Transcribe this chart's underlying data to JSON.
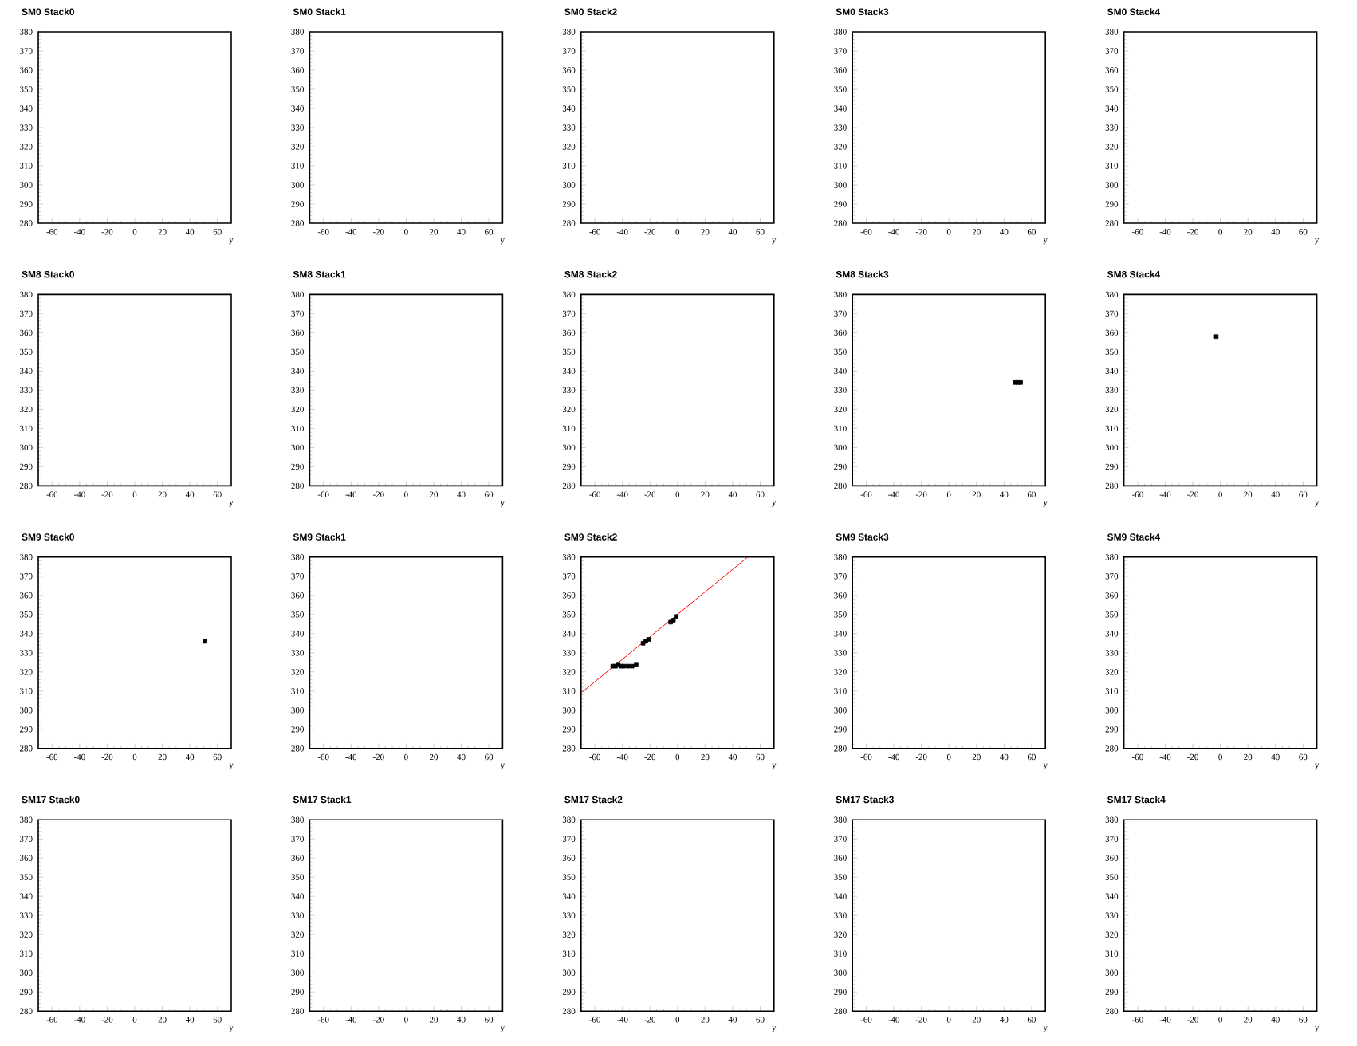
{
  "chart_data": [
    {
      "type": "scatter",
      "title": "SM0 Stack0",
      "xlabel": "y",
      "xlim": [
        -70,
        70
      ],
      "ylim": [
        280,
        380
      ],
      "xticks": [
        -60,
        -40,
        -20,
        0,
        20,
        40,
        60
      ],
      "yticks": [
        280,
        290,
        300,
        310,
        320,
        330,
        340,
        350,
        360,
        370,
        380
      ]
    },
    {
      "type": "scatter",
      "title": "SM0 Stack1",
      "xlabel": "y",
      "xlim": [
        -70,
        70
      ],
      "ylim": [
        280,
        380
      ],
      "xticks": [
        -60,
        -40,
        -20,
        0,
        20,
        40,
        60
      ],
      "yticks": [
        280,
        290,
        300,
        310,
        320,
        330,
        340,
        350,
        360,
        370,
        380
      ]
    },
    {
      "type": "scatter",
      "title": "SM0 Stack2",
      "xlabel": "y",
      "xlim": [
        -70,
        70
      ],
      "ylim": [
        280,
        380
      ],
      "xticks": [
        -60,
        -40,
        -20,
        0,
        20,
        40,
        60
      ],
      "yticks": [
        280,
        290,
        300,
        310,
        320,
        330,
        340,
        350,
        360,
        370,
        380
      ]
    },
    {
      "type": "scatter",
      "title": "SM0 Stack3",
      "xlabel": "y",
      "xlim": [
        -70,
        70
      ],
      "ylim": [
        280,
        380
      ],
      "xticks": [
        -60,
        -40,
        -20,
        0,
        20,
        40,
        60
      ],
      "yticks": [
        280,
        290,
        300,
        310,
        320,
        330,
        340,
        350,
        360,
        370,
        380
      ]
    },
    {
      "type": "scatter",
      "title": "SM0 Stack4",
      "xlabel": "y",
      "xlim": [
        -70,
        70
      ],
      "ylim": [
        280,
        380
      ],
      "xticks": [
        -60,
        -40,
        -20,
        0,
        20,
        40,
        60
      ],
      "yticks": [
        280,
        290,
        300,
        310,
        320,
        330,
        340,
        350,
        360,
        370,
        380
      ]
    },
    {
      "type": "scatter",
      "title": "SM8 Stack0",
      "xlabel": "y",
      "xlim": [
        -70,
        70
      ],
      "ylim": [
        280,
        380
      ],
      "xticks": [
        -60,
        -40,
        -20,
        0,
        20,
        40,
        60
      ],
      "yticks": [
        280,
        290,
        300,
        310,
        320,
        330,
        340,
        350,
        360,
        370,
        380
      ]
    },
    {
      "type": "scatter",
      "title": "SM8 Stack1",
      "xlabel": "y",
      "xlim": [
        -70,
        70
      ],
      "ylim": [
        280,
        380
      ],
      "xticks": [
        -60,
        -40,
        -20,
        0,
        20,
        40,
        60
      ],
      "yticks": [
        280,
        290,
        300,
        310,
        320,
        330,
        340,
        350,
        360,
        370,
        380
      ]
    },
    {
      "type": "scatter",
      "title": "SM8 Stack2",
      "xlabel": "y",
      "xlim": [
        -70,
        70
      ],
      "ylim": [
        280,
        380
      ],
      "xticks": [
        -60,
        -40,
        -20,
        0,
        20,
        40,
        60
      ],
      "yticks": [
        280,
        290,
        300,
        310,
        320,
        330,
        340,
        350,
        360,
        370,
        380
      ]
    },
    {
      "type": "scatter",
      "title": "SM8 Stack3",
      "xlabel": "y",
      "xlim": [
        -70,
        70
      ],
      "ylim": [
        280,
        380
      ],
      "xticks": [
        -60,
        -40,
        -20,
        0,
        20,
        40,
        60
      ],
      "yticks": [
        280,
        290,
        300,
        310,
        320,
        330,
        340,
        350,
        360,
        370,
        380
      ],
      "series": [
        {
          "color": "#000000",
          "marker": "square",
          "x": [
            48,
            50,
            52
          ],
          "values": [
            334,
            334,
            334
          ]
        }
      ]
    },
    {
      "type": "scatter",
      "title": "SM8 Stack4",
      "xlabel": "y",
      "xlim": [
        -70,
        70
      ],
      "ylim": [
        280,
        380
      ],
      "xticks": [
        -60,
        -40,
        -20,
        0,
        20,
        40,
        60
      ],
      "yticks": [
        280,
        290,
        300,
        310,
        320,
        330,
        340,
        350,
        360,
        370,
        380
      ],
      "series": [
        {
          "color": "#000000",
          "marker": "square",
          "x": [
            -3
          ],
          "values": [
            358
          ]
        }
      ]
    },
    {
      "type": "scatter",
      "title": "SM9 Stack0",
      "xlabel": "y",
      "xlim": [
        -70,
        70
      ],
      "ylim": [
        280,
        380
      ],
      "xticks": [
        -60,
        -40,
        -20,
        0,
        20,
        40,
        60
      ],
      "yticks": [
        280,
        290,
        300,
        310,
        320,
        330,
        340,
        350,
        360,
        370,
        380
      ],
      "series": [
        {
          "color": "#000000",
          "marker": "square",
          "x": [
            51
          ],
          "values": [
            336
          ]
        }
      ]
    },
    {
      "type": "scatter",
      "title": "SM9 Stack1",
      "xlabel": "y",
      "xlim": [
        -70,
        70
      ],
      "ylim": [
        280,
        380
      ],
      "xticks": [
        -60,
        -40,
        -20,
        0,
        20,
        40,
        60
      ],
      "yticks": [
        280,
        290,
        300,
        310,
        320,
        330,
        340,
        350,
        360,
        370,
        380
      ]
    },
    {
      "type": "scatter",
      "title": "SM9 Stack2",
      "xlabel": "y",
      "xlim": [
        -70,
        70
      ],
      "ylim": [
        280,
        380
      ],
      "xticks": [
        -60,
        -40,
        -20,
        0,
        20,
        40,
        60
      ],
      "yticks": [
        280,
        290,
        300,
        310,
        320,
        330,
        340,
        350,
        360,
        370,
        380
      ],
      "series": [
        {
          "color": "#000000",
          "marker": "square",
          "x": [
            -47,
            -45,
            -43,
            -41,
            -39,
            -36,
            -33,
            -30,
            -25,
            -23,
            -21,
            -5,
            -3,
            -1
          ],
          "values": [
            323,
            323,
            324,
            323,
            323,
            323,
            323,
            324,
            335,
            336,
            337,
            346,
            347,
            349
          ]
        },
        {
          "type": "line",
          "color": "#ff0000",
          "x": [
            -70,
            51
          ],
          "values": [
            309,
            380
          ]
        }
      ]
    },
    {
      "type": "scatter",
      "title": "SM9 Stack3",
      "xlabel": "y",
      "xlim": [
        -70,
        70
      ],
      "ylim": [
        280,
        380
      ],
      "xticks": [
        -60,
        -40,
        -20,
        0,
        20,
        40,
        60
      ],
      "yticks": [
        280,
        290,
        300,
        310,
        320,
        330,
        340,
        350,
        360,
        370,
        380
      ]
    },
    {
      "type": "scatter",
      "title": "SM9 Stack4",
      "xlabel": "y",
      "xlim": [
        -70,
        70
      ],
      "ylim": [
        280,
        380
      ],
      "xticks": [
        -60,
        -40,
        -20,
        0,
        20,
        40,
        60
      ],
      "yticks": [
        280,
        290,
        300,
        310,
        320,
        330,
        340,
        350,
        360,
        370,
        380
      ]
    },
    {
      "type": "scatter",
      "title": "SM17 Stack0",
      "xlabel": "y",
      "xlim": [
        -70,
        70
      ],
      "ylim": [
        280,
        380
      ],
      "xticks": [
        -60,
        -40,
        -20,
        0,
        20,
        40,
        60
      ],
      "yticks": [
        280,
        290,
        300,
        310,
        320,
        330,
        340,
        350,
        360,
        370,
        380
      ]
    },
    {
      "type": "scatter",
      "title": "SM17 Stack1",
      "xlabel": "y",
      "xlim": [
        -70,
        70
      ],
      "ylim": [
        280,
        380
      ],
      "xticks": [
        -60,
        -40,
        -20,
        0,
        20,
        40,
        60
      ],
      "yticks": [
        280,
        290,
        300,
        310,
        320,
        330,
        340,
        350,
        360,
        370,
        380
      ]
    },
    {
      "type": "scatter",
      "title": "SM17 Stack2",
      "xlabel": "y",
      "xlim": [
        -70,
        70
      ],
      "ylim": [
        280,
        380
      ],
      "xticks": [
        -60,
        -40,
        -20,
        0,
        20,
        40,
        60
      ],
      "yticks": [
        280,
        290,
        300,
        310,
        320,
        330,
        340,
        350,
        360,
        370,
        380
      ]
    },
    {
      "type": "scatter",
      "title": "SM17 Stack3",
      "xlabel": "y",
      "xlim": [
        -70,
        70
      ],
      "ylim": [
        280,
        380
      ],
      "xticks": [
        -60,
        -40,
        -20,
        0,
        20,
        40,
        60
      ],
      "yticks": [
        280,
        290,
        300,
        310,
        320,
        330,
        340,
        350,
        360,
        370,
        380
      ]
    },
    {
      "type": "scatter",
      "title": "SM17 Stack4",
      "xlabel": "y",
      "xlim": [
        -70,
        70
      ],
      "ylim": [
        280,
        380
      ],
      "xticks": [
        -60,
        -40,
        -20,
        0,
        20,
        40,
        60
      ],
      "yticks": [
        280,
        290,
        300,
        310,
        320,
        330,
        340,
        350,
        360,
        370,
        380
      ]
    }
  ]
}
